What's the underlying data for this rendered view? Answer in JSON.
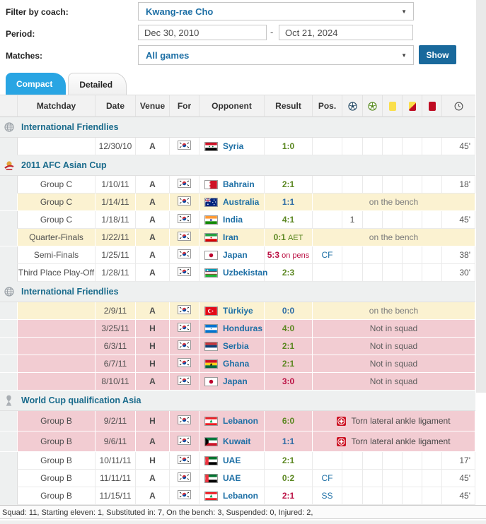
{
  "filter_panel": {
    "coach": {
      "label": "Filter by coach:",
      "value": "Kwang-rae Cho"
    },
    "period": {
      "label": "Period:",
      "from": "Dec 30, 2010",
      "separator": "-",
      "to": "Oct 21, 2024"
    },
    "matches": {
      "label": "Matches:",
      "value": "All games"
    },
    "show_button": "Show"
  },
  "tabs": [
    {
      "label": "Compact",
      "active": true
    },
    {
      "label": "Detailed",
      "active": false
    }
  ],
  "table": {
    "columns": {
      "matchday": "Matchday",
      "date": "Date",
      "venue": "Venue",
      "for": "For",
      "opponent": "Opponent",
      "result": "Result",
      "pos": "Pos."
    },
    "icon_columns": [
      "goals-icon",
      "assists-icon",
      "yellow-card-icon",
      "second-yellow-card-icon",
      "red-card-icon",
      "minutes-icon"
    ],
    "sections": [
      {
        "title": "International Friendlies",
        "icon": "friendly-icon",
        "rows": [
          {
            "matchday": "",
            "date": "12/30/10",
            "venue": "A",
            "for_team": "South Korea",
            "for_flag": "kr",
            "opponent": "Syria",
            "opponent_flag": "sy",
            "result": "1:0",
            "outcome": "win",
            "pos": "",
            "goals": "",
            "assists": "",
            "yellow": "",
            "second_yellow": "",
            "red": "",
            "minutes": "45'",
            "highlight": "none"
          }
        ]
      },
      {
        "title": "2011 AFC Asian Cup",
        "icon": "afc-asian-cup-icon",
        "rows": [
          {
            "matchday": "Group C",
            "date": "1/10/11",
            "venue": "A",
            "for_team": "South Korea",
            "for_flag": "kr",
            "opponent": "Bahrain",
            "opponent_flag": "bh",
            "result": "2:1",
            "outcome": "win",
            "pos": "",
            "goals": "",
            "assists": "",
            "yellow": "",
            "second_yellow": "",
            "red": "",
            "minutes": "18'",
            "highlight": "none"
          },
          {
            "matchday": "Group C",
            "date": "1/14/11",
            "venue": "A",
            "for_team": "South Korea",
            "for_flag": "kr",
            "opponent": "Australia",
            "opponent_flag": "au",
            "result": "1:1",
            "outcome": "draw",
            "status": "on the bench",
            "highlight": "bench"
          },
          {
            "matchday": "Group C",
            "date": "1/18/11",
            "venue": "A",
            "for_team": "South Korea",
            "for_flag": "kr",
            "opponent": "India",
            "opponent_flag": "in",
            "result": "4:1",
            "outcome": "win",
            "pos": "",
            "goals": "1",
            "assists": "",
            "yellow": "",
            "second_yellow": "",
            "red": "",
            "minutes": "45'",
            "highlight": "none"
          },
          {
            "matchday": "Quarter-Finals",
            "date": "1/22/11",
            "venue": "A",
            "for_team": "South Korea",
            "for_flag": "kr",
            "opponent": "Iran",
            "opponent_flag": "ir",
            "result": "0:1",
            "result_suffix": "AET",
            "outcome": "win",
            "status": "on the bench",
            "highlight": "bench"
          },
          {
            "matchday": "Semi-Finals",
            "date": "1/25/11",
            "venue": "A",
            "for_team": "South Korea",
            "for_flag": "kr",
            "opponent": "Japan",
            "opponent_flag": "jp",
            "result": "5:3",
            "result_suffix": "on pens",
            "outcome": "loss",
            "pos": "CF",
            "goals": "",
            "assists": "",
            "yellow": "",
            "second_yellow": "",
            "red": "",
            "minutes": "38'",
            "highlight": "none"
          },
          {
            "matchday": "Third Place Play-Off",
            "date": "1/28/11",
            "venue": "A",
            "for_team": "South Korea",
            "for_flag": "kr",
            "opponent": "Uzbekistan",
            "opponent_flag": "uz",
            "result": "2:3",
            "outcome": "win",
            "pos": "",
            "goals": "",
            "assists": "",
            "yellow": "",
            "second_yellow": "",
            "red": "",
            "minutes": "30'",
            "highlight": "none"
          }
        ]
      },
      {
        "title": "International Friendlies",
        "icon": "friendly-icon",
        "rows": [
          {
            "matchday": "",
            "date": "2/9/11",
            "venue": "A",
            "for_team": "South Korea",
            "for_flag": "kr",
            "opponent": "Türkiye",
            "opponent_flag": "tr",
            "result": "0:0",
            "outcome": "draw",
            "status": "on the bench",
            "highlight": "bench"
          },
          {
            "matchday": "",
            "date": "3/25/11",
            "venue": "H",
            "for_team": "South Korea",
            "for_flag": "kr",
            "opponent": "Honduras",
            "opponent_flag": "hn",
            "result": "4:0",
            "outcome": "win",
            "status": "Not in squad",
            "highlight": "missed"
          },
          {
            "matchday": "",
            "date": "6/3/11",
            "venue": "H",
            "for_team": "South Korea",
            "for_flag": "kr",
            "opponent": "Serbia",
            "opponent_flag": "rs",
            "result": "2:1",
            "outcome": "win",
            "status": "Not in squad",
            "highlight": "missed"
          },
          {
            "matchday": "",
            "date": "6/7/11",
            "venue": "H",
            "for_team": "South Korea",
            "for_flag": "kr",
            "opponent": "Ghana",
            "opponent_flag": "gh",
            "result": "2:1",
            "outcome": "win",
            "status": "Not in squad",
            "highlight": "missed"
          },
          {
            "matchday": "",
            "date": "8/10/11",
            "venue": "A",
            "for_team": "South Korea",
            "for_flag": "kr",
            "opponent": "Japan",
            "opponent_flag": "jp",
            "result": "3:0",
            "outcome": "loss",
            "status": "Not in squad",
            "highlight": "missed"
          }
        ]
      },
      {
        "title": "World Cup qualification Asia",
        "icon": "world-cup-icon",
        "rows": [
          {
            "matchday": "Group B",
            "date": "9/2/11",
            "venue": "H",
            "for_team": "South Korea",
            "for_flag": "kr",
            "opponent": "Lebanon",
            "opponent_flag": "lb",
            "result": "6:0",
            "outcome": "win",
            "status": "Torn lateral ankle ligament",
            "status_icon": "injury-cross-icon",
            "highlight": "missed",
            "tall": true
          },
          {
            "matchday": "Group B",
            "date": "9/6/11",
            "venue": "A",
            "for_team": "South Korea",
            "for_flag": "kr",
            "opponent": "Kuwait",
            "opponent_flag": "kw",
            "result": "1:1",
            "outcome": "draw",
            "status": "Torn lateral ankle ligament",
            "status_icon": "injury-cross-icon",
            "highlight": "missed",
            "tall": true
          },
          {
            "matchday": "Group B",
            "date": "10/11/11",
            "venue": "H",
            "for_team": "South Korea",
            "for_flag": "kr",
            "opponent": "UAE",
            "opponent_flag": "ae",
            "result": "2:1",
            "outcome": "win",
            "pos": "",
            "goals": "",
            "assists": "",
            "yellow": "",
            "second_yellow": "",
            "red": "",
            "minutes": "17'",
            "highlight": "none"
          },
          {
            "matchday": "Group B",
            "date": "11/11/11",
            "venue": "A",
            "for_team": "South Korea",
            "for_flag": "kr",
            "opponent": "UAE",
            "opponent_flag": "ae",
            "result": "0:2",
            "outcome": "win",
            "pos": "CF",
            "goals": "",
            "assists": "",
            "yellow": "",
            "second_yellow": "",
            "red": "",
            "minutes": "45'",
            "highlight": "none"
          },
          {
            "matchday": "Group B",
            "date": "11/15/11",
            "venue": "A",
            "for_team": "South Korea",
            "for_flag": "kr",
            "opponent": "Lebanon",
            "opponent_flag": "lb",
            "result": "2:1",
            "outcome": "loss",
            "pos": "SS",
            "goals": "",
            "assists": "",
            "yellow": "",
            "second_yellow": "",
            "red": "",
            "minutes": "45'",
            "highlight": "none"
          }
        ]
      }
    ]
  },
  "footer": {
    "summary": "Squad: 11, Starting eleven: 1, Substituted in: 7, On the bench: 3, Suspended: 0, Injured: 2,"
  },
  "colors": {
    "active_tab": "#29a5e3",
    "show_button": "#19699c",
    "link": "#1d6fa5",
    "section_title": "#1a6b8c",
    "result": {
      "win": "#5b8721",
      "draw": "#2e6ca5",
      "loss": "#bb1144"
    },
    "bench_row_bg": "#fbf2d1",
    "missed_row_bg": "#f2ccd2",
    "header_bg": "#f2f2f2"
  }
}
